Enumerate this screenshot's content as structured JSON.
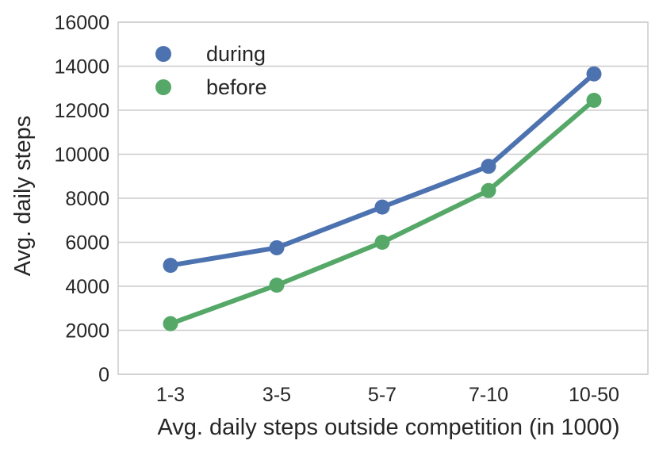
{
  "chart_data": {
    "type": "line",
    "categories": [
      "1-3",
      "3-5",
      "5-7",
      "7-10",
      "10-50"
    ],
    "series": [
      {
        "name": "during",
        "values": [
          4950,
          5750,
          7600,
          9450,
          13650
        ],
        "color": "#4c72b0"
      },
      {
        "name": "before",
        "values": [
          2300,
          4050,
          6000,
          8350,
          12450
        ],
        "color": "#55a868"
      }
    ],
    "xlabel": "Avg. daily steps outside competition (in 1000)",
    "ylabel": "Avg. daily steps",
    "ylim": [
      0,
      16000
    ],
    "yticks": [
      "0",
      "2000",
      "4000",
      "6000",
      "8000",
      "10000",
      "12000",
      "14000",
      "16000"
    ],
    "grid": true,
    "legend_position": "top-left"
  }
}
